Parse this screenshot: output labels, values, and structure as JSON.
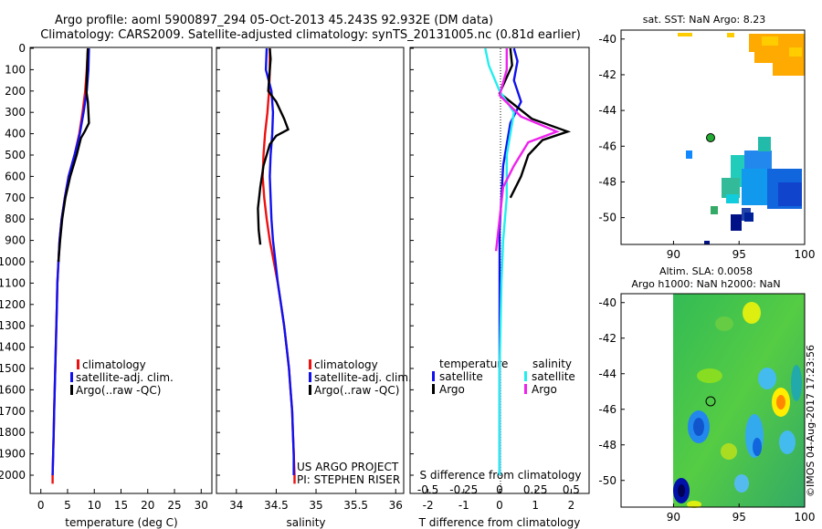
{
  "header": {
    "line1": "Argo profile: aoml 5900897_294 05-Oct-2013 45.243S 92.932E (DM data)",
    "line2": "Climatology: CARS2009. Satellite-adjusted climatology: synTS_20131005.nc (0.81d earlier)"
  },
  "credits": {
    "project": "US ARGO PROJECT",
    "pi": "PI: STEPHEN RISER",
    "stamp": "©IMOS 04-Aug-2017 17:23:56"
  },
  "colors": {
    "climatology": "#ee1111",
    "satellite": "#1111ee",
    "argo": "#000000",
    "satellite_s": "#22eeee",
    "argo_s": "#ee22ee"
  },
  "chart_data": [
    {
      "type": "line",
      "xlabel": "temperature (deg C)",
      "xlim": [
        -2,
        32
      ],
      "xticks": [
        "0",
        "5",
        "10",
        "15",
        "20",
        "25",
        "30"
      ],
      "ylim": [
        0,
        2080
      ],
      "yticks": [
        "0",
        "100",
        "200",
        "300",
        "400",
        "500",
        "600",
        "700",
        "800",
        "900",
        "1000",
        "1100",
        "1200",
        "1300",
        "1400",
        "1500",
        "1600",
        "1700",
        "1800",
        "1900",
        "2000"
      ],
      "legend": [
        "climatology",
        "satellite-adj. clim.",
        "Argo(..raw -QC)"
      ],
      "series": [
        {
          "name": "climatology",
          "color": "#ee1111",
          "points": [
            [
              8.8,
              0
            ],
            [
              8.6,
              100
            ],
            [
              8.3,
              200
            ],
            [
              7.8,
              300
            ],
            [
              7.2,
              400
            ],
            [
              6.3,
              500
            ],
            [
              5.2,
              600
            ],
            [
              4.5,
              700
            ],
            [
              3.9,
              800
            ],
            [
              3.5,
              900
            ],
            [
              3.3,
              1000
            ],
            [
              3.1,
              1100
            ],
            [
              3.0,
              1200
            ],
            [
              2.9,
              1300
            ],
            [
              2.8,
              1400
            ],
            [
              2.7,
              1500
            ],
            [
              2.6,
              1600
            ],
            [
              2.5,
              1700
            ],
            [
              2.4,
              1800
            ],
            [
              2.3,
              1900
            ],
            [
              2.2,
              2000
            ],
            [
              2.2,
              2040
            ]
          ]
        },
        {
          "name": "satellite-adj. clim.",
          "color": "#1111ee",
          "points": [
            [
              9.0,
              0
            ],
            [
              8.9,
              100
            ],
            [
              8.6,
              200
            ],
            [
              8.0,
              300
            ],
            [
              7.3,
              400
            ],
            [
              6.3,
              500
            ],
            [
              5.2,
              600
            ],
            [
              4.5,
              700
            ],
            [
              3.9,
              800
            ],
            [
              3.5,
              900
            ],
            [
              3.3,
              1000
            ],
            [
              3.1,
              1100
            ],
            [
              3.0,
              1200
            ],
            [
              2.9,
              1300
            ],
            [
              2.8,
              1400
            ],
            [
              2.7,
              1500
            ],
            [
              2.6,
              1600
            ],
            [
              2.5,
              1700
            ],
            [
              2.4,
              1800
            ],
            [
              2.3,
              1900
            ],
            [
              2.2,
              2000
            ]
          ]
        },
        {
          "name": "Argo(..raw -QC)",
          "color": "#000000",
          "points": [
            [
              8.8,
              0
            ],
            [
              8.7,
              60
            ],
            [
              8.6,
              150
            ],
            [
              8.5,
              200
            ],
            [
              8.8,
              250
            ],
            [
              8.9,
              300
            ],
            [
              9.0,
              350
            ],
            [
              8.2,
              390
            ],
            [
              7.5,
              420
            ],
            [
              6.7,
              500
            ],
            [
              5.5,
              600
            ],
            [
              4.6,
              700
            ],
            [
              4.0,
              800
            ],
            [
              3.6,
              900
            ],
            [
              3.3,
              1000
            ]
          ]
        }
      ]
    },
    {
      "type": "line",
      "xlabel": "salinity",
      "xlim": [
        33.75,
        36.1
      ],
      "xticks": [
        "34",
        "34.5",
        "35",
        "35.5",
        "36"
      ],
      "ylim": [
        0,
        2080
      ],
      "legend": [
        "climatology",
        "satellite-adj. clim.",
        "Argo(..raw -QC)"
      ],
      "series": [
        {
          "name": "climatology",
          "color": "#ee1111",
          "points": [
            [
              34.42,
              0
            ],
            [
              34.42,
              100
            ],
            [
              34.41,
              200
            ],
            [
              34.39,
              300
            ],
            [
              34.36,
              400
            ],
            [
              34.34,
              500
            ],
            [
              34.33,
              600
            ],
            [
              34.35,
              700
            ],
            [
              34.38,
              800
            ],
            [
              34.42,
              900
            ],
            [
              34.47,
              1000
            ],
            [
              34.52,
              1100
            ],
            [
              34.56,
              1200
            ],
            [
              34.6,
              1300
            ],
            [
              34.63,
              1400
            ],
            [
              34.66,
              1500
            ],
            [
              34.68,
              1600
            ],
            [
              34.7,
              1700
            ],
            [
              34.71,
              1800
            ],
            [
              34.72,
              1900
            ],
            [
              34.73,
              2000
            ],
            [
              34.73,
              2040
            ]
          ]
        },
        {
          "name": "satellite-adj. clim.",
          "color": "#1111ee",
          "points": [
            [
              34.38,
              0
            ],
            [
              34.37,
              100
            ],
            [
              34.44,
              200
            ],
            [
              34.46,
              300
            ],
            [
              34.45,
              400
            ],
            [
              34.43,
              500
            ],
            [
              34.42,
              600
            ],
            [
              34.43,
              700
            ],
            [
              34.44,
              800
            ],
            [
              34.46,
              900
            ],
            [
              34.49,
              1000
            ],
            [
              34.52,
              1100
            ],
            [
              34.56,
              1200
            ],
            [
              34.6,
              1300
            ],
            [
              34.63,
              1400
            ],
            [
              34.66,
              1500
            ],
            [
              34.68,
              1600
            ],
            [
              34.7,
              1700
            ],
            [
              34.71,
              1800
            ],
            [
              34.72,
              1900
            ],
            [
              34.72,
              2000
            ]
          ]
        },
        {
          "name": "Argo(..raw -QC)",
          "color": "#000000",
          "points": [
            [
              34.42,
              0
            ],
            [
              34.43,
              50
            ],
            [
              34.42,
              100
            ],
            [
              34.4,
              200
            ],
            [
              34.5,
              250
            ],
            [
              34.6,
              330
            ],
            [
              34.65,
              380
            ],
            [
              34.5,
              410
            ],
            [
              34.42,
              450
            ],
            [
              34.34,
              550
            ],
            [
              34.3,
              650
            ],
            [
              34.27,
              750
            ],
            [
              34.28,
              850
            ],
            [
              34.3,
              920
            ]
          ]
        }
      ]
    },
    {
      "type": "line",
      "xlabel": "T difference from climatology",
      "title": "S difference from climatology",
      "xlim": [
        -2.5,
        2.5
      ],
      "xticks": [
        "-2",
        "-1",
        "0",
        "1",
        "2"
      ],
      "top_ticks": [
        "-0.5",
        "-0.25",
        "0",
        "0.25",
        "0.5"
      ],
      "ylim": [
        0,
        2080
      ],
      "legend_headers": [
        "temperature",
        "salinity"
      ],
      "legend": [
        "satellite",
        "Argo",
        "satellite",
        "Argo"
      ],
      "series": [
        {
          "name": "satellite",
          "color": "#1111ee",
          "points": [
            [
              0.4,
              0
            ],
            [
              0.5,
              60
            ],
            [
              0.4,
              150
            ],
            [
              0.6,
              250
            ],
            [
              0.3,
              350
            ],
            [
              0.2,
              450
            ],
            [
              0.1,
              550
            ],
            [
              0.05,
              700
            ],
            [
              0.0,
              850
            ],
            [
              0.0,
              1000
            ],
            [
              0.0,
              1500
            ],
            [
              0.0,
              2000
            ]
          ]
        },
        {
          "name": "Argo",
          "color": "#000000",
          "points": [
            [
              0.3,
              0
            ],
            [
              0.35,
              80
            ],
            [
              0.0,
              210
            ],
            [
              0.3,
              250
            ],
            [
              0.9,
              330
            ],
            [
              1.9,
              390
            ],
            [
              1.2,
              430
            ],
            [
              0.8,
              500
            ],
            [
              0.6,
              600
            ],
            [
              0.3,
              700
            ]
          ]
        },
        {
          "name": "satellite",
          "color": "#22eeee",
          "points": [
            [
              -0.4,
              0
            ],
            [
              -0.3,
              80
            ],
            [
              0.0,
              200
            ],
            [
              0.4,
              300
            ],
            [
              0.3,
              400
            ],
            [
              0.2,
              500
            ],
            [
              0.2,
              700
            ],
            [
              0.1,
              900
            ],
            [
              0.05,
              1100
            ],
            [
              0.0,
              1500
            ],
            [
              0.0,
              2000
            ]
          ]
        },
        {
          "name": "Argo",
          "color": "#ee22ee",
          "points": [
            [
              0.2,
              0
            ],
            [
              0.2,
              100
            ],
            [
              0.0,
              220
            ],
            [
              0.6,
              320
            ],
            [
              1.6,
              390
            ],
            [
              0.8,
              440
            ],
            [
              0.4,
              550
            ],
            [
              0.1,
              650
            ],
            [
              0.0,
              800
            ],
            [
              -0.1,
              950
            ]
          ]
        }
      ]
    },
    {
      "type": "heatmap",
      "title": "sat. SST: NaN Argo: 8.23",
      "xlim": [
        86,
        100
      ],
      "ylim": [
        -51.5,
        -39.5
      ],
      "xticks": [
        "90",
        "95",
        "100"
      ],
      "yticks": [
        "-40",
        "-42",
        "-44",
        "-46",
        "-48",
        "-50"
      ]
    },
    {
      "type": "heatmap",
      "title": "Altim. SLA: 0.0058",
      "subtitle": "Argo h1000: NaN h2000: NaN",
      "xlim": [
        86,
        100
      ],
      "ylim": [
        -51.5,
        -39.5
      ],
      "xticks": [
        "90",
        "95",
        "100"
      ],
      "yticks": [
        "-40",
        "-42",
        "-44",
        "-46",
        "-48",
        "-50"
      ]
    }
  ]
}
